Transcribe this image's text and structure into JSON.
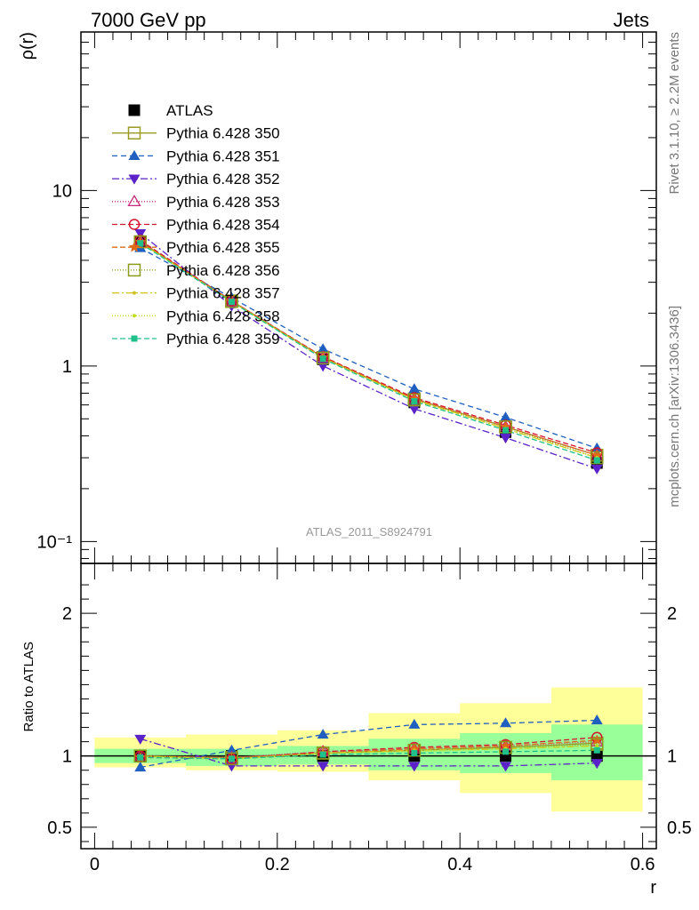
{
  "header": {
    "left": "7000 GeV pp",
    "right": "Jets"
  },
  "side_labels": {
    "top": "Rivet 3.1.10, ≥ 2.2M events",
    "bottom": "mcplots.cern.ch [arXiv:1306.3436]"
  },
  "analysis_label": "ATLAS_2011_S8924791",
  "chart_data": {
    "type": "line",
    "x": [
      0.05,
      0.15,
      0.25,
      0.35,
      0.45,
      0.55
    ],
    "x_edges": [
      0.0,
      0.1,
      0.2,
      0.3,
      0.4,
      0.5,
      0.6
    ],
    "xlabel": "r",
    "xlim": [
      -0.015,
      0.615
    ],
    "x_ticks": [
      "0",
      "0.2",
      "0.4",
      "0.6"
    ],
    "main": {
      "ylabel": "ρ(r)",
      "yscale": "log",
      "ylim": [
        0.075,
        80
      ],
      "y_ticks": [
        "10⁻¹",
        "1",
        "10"
      ]
    },
    "ratio": {
      "ylabel": "Ratio to ATLAS",
      "ylim": [
        0.35,
        2.35
      ],
      "y_ticks": [
        "0.5",
        "1",
        "2"
      ],
      "band_inner": [
        [
          0.95,
          1.05
        ],
        [
          0.93,
          1.05
        ],
        [
          0.94,
          1.07
        ],
        [
          0.9,
          1.12
        ],
        [
          0.88,
          1.16
        ],
        [
          0.83,
          1.22
        ]
      ],
      "band_outer": [
        [
          0.92,
          1.13
        ],
        [
          0.9,
          1.15
        ],
        [
          0.89,
          1.18
        ],
        [
          0.83,
          1.3
        ],
        [
          0.74,
          1.37
        ],
        [
          0.61,
          1.48
        ]
      ]
    },
    "legend_placement": "top-left",
    "series": [
      {
        "name": "ATLAS",
        "color": "#000000",
        "marker": "filled-square",
        "dash": "none",
        "values": [
          5.05,
          2.35,
          1.09,
          0.62,
          0.42,
          0.28
        ],
        "ratio": [
          1,
          1,
          1,
          1,
          1,
          1
        ]
      },
      {
        "name": "Pythia 6.428 350",
        "color": "#9a9a24",
        "marker": "open-square",
        "dash": "solid",
        "values": [
          5.1,
          2.35,
          1.12,
          0.65,
          0.45,
          0.31
        ],
        "ratio": [
          1.0,
          0.99,
          1.02,
          1.04,
          1.06,
          1.09
        ]
      },
      {
        "name": "Pythia 6.428 351",
        "color": "#1f5fbf",
        "marker": "filled-triangle-up",
        "dash": "6,4",
        "values": [
          4.7,
          2.45,
          1.25,
          0.74,
          0.51,
          0.34
        ],
        "ratio": [
          0.92,
          1.04,
          1.15,
          1.22,
          1.23,
          1.25
        ]
      },
      {
        "name": "Pythia 6.428 352",
        "color": "#5a22c8",
        "marker": "filled-triangle-down",
        "dash": "8,3,2,3",
        "values": [
          5.7,
          2.2,
          1.0,
          0.57,
          0.39,
          0.26
        ],
        "ratio": [
          1.12,
          0.93,
          0.93,
          0.93,
          0.93,
          0.95
        ]
      },
      {
        "name": "Pythia 6.428 353",
        "color": "#c8287a",
        "marker": "open-triangle-up",
        "dash": "1,2",
        "values": [
          5.15,
          2.33,
          1.12,
          0.65,
          0.45,
          0.31
        ],
        "ratio": [
          1.0,
          0.99,
          1.03,
          1.05,
          1.07,
          1.1
        ]
      },
      {
        "name": "Pythia 6.428 354",
        "color": "#d4142a",
        "marker": "open-circle",
        "dash": "6,3",
        "values": [
          5.2,
          2.35,
          1.13,
          0.66,
          0.46,
          0.32
        ],
        "ratio": [
          1.0,
          0.98,
          1.03,
          1.06,
          1.08,
          1.13
        ]
      },
      {
        "name": "Pythia 6.428 355",
        "color": "#e06a1a",
        "marker": "filled-star",
        "dash": "6,3",
        "values": [
          5.1,
          2.34,
          1.12,
          0.65,
          0.45,
          0.31
        ],
        "ratio": [
          0.99,
          0.98,
          1.02,
          1.05,
          1.07,
          1.11
        ]
      },
      {
        "name": "Pythia 6.428 356",
        "color": "#8c9a1a",
        "marker": "open-square",
        "dash": "1,2",
        "values": [
          5.1,
          2.33,
          1.11,
          0.64,
          0.45,
          0.3
        ],
        "ratio": [
          1.0,
          0.98,
          1.02,
          1.04,
          1.06,
          1.08
        ]
      },
      {
        "name": "Pythia 6.428 357",
        "color": "#d2c21e",
        "marker": "small-dot",
        "dash": "8,3,2,3",
        "values": [
          5.05,
          2.33,
          1.11,
          0.64,
          0.44,
          0.3
        ],
        "ratio": [
          1.0,
          0.98,
          1.02,
          1.04,
          1.05,
          1.07
        ]
      },
      {
        "name": "Pythia 6.428 358",
        "color": "#bde01a",
        "marker": "small-dot",
        "dash": "1,2",
        "values": [
          5.05,
          2.33,
          1.11,
          0.64,
          0.44,
          0.3
        ],
        "ratio": [
          1.0,
          0.98,
          1.02,
          1.03,
          1.05,
          1.07
        ]
      },
      {
        "name": "Pythia 6.428 359",
        "color": "#1fc08a",
        "marker": "filled-square-small",
        "dash": "6,3",
        "values": [
          5.0,
          2.32,
          1.1,
          0.63,
          0.43,
          0.29
        ],
        "ratio": [
          0.99,
          0.98,
          1.01,
          1.02,
          1.03,
          1.04
        ]
      }
    ]
  }
}
